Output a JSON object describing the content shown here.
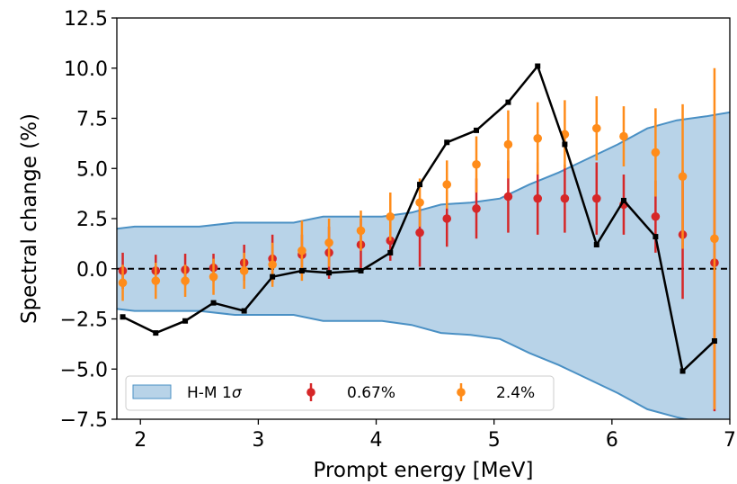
{
  "chart_data": {
    "type": "scatter",
    "title": "",
    "xlabel": "Prompt energy [MeV]",
    "ylabel": "Spectral change (%)",
    "xlim": [
      1.8,
      7.0
    ],
    "ylim": [
      -7.5,
      12.5
    ],
    "x_ticks": [
      2,
      3,
      4,
      5,
      6,
      7
    ],
    "x_tick_labels": [
      "2",
      "3",
      "4",
      "5",
      "6",
      "7"
    ],
    "y_ticks": [
      -7.5,
      -5.0,
      -2.5,
      0.0,
      2.5,
      5.0,
      7.5,
      10.0,
      12.5
    ],
    "y_tick_labels": [
      "−7.5",
      "−5.0",
      "−2.5",
      "0.0",
      "2.5",
      "5.0",
      "7.5",
      "10.0",
      "12.5"
    ],
    "grid": false,
    "legend_position": "bottom-left",
    "reference_line": {
      "y": 0,
      "style": "dashed",
      "color": "#000000"
    },
    "band": {
      "name": "H-M 1σ",
      "legend_label_prefix": "H-M 1",
      "legend_label_symbol": "σ",
      "fill_color": "#b8d3e8",
      "edge_color": "#4a90c4",
      "x": [
        1.8,
        1.95,
        2.2,
        2.5,
        2.8,
        3.05,
        3.3,
        3.55,
        3.8,
        4.05,
        4.3,
        4.55,
        4.8,
        5.05,
        5.3,
        5.55,
        5.8,
        6.05,
        6.3,
        6.55,
        6.8,
        7.0
      ],
      "upper": [
        2.0,
        2.1,
        2.1,
        2.1,
        2.3,
        2.3,
        2.3,
        2.6,
        2.6,
        2.6,
        2.8,
        3.2,
        3.3,
        3.5,
        4.2,
        4.8,
        5.5,
        6.2,
        7.0,
        7.4,
        7.6,
        7.8
      ],
      "lower": [
        -2.0,
        -2.1,
        -2.1,
        -2.1,
        -2.3,
        -2.3,
        -2.3,
        -2.6,
        -2.6,
        -2.6,
        -2.8,
        -3.2,
        -3.3,
        -3.5,
        -4.2,
        -4.8,
        -5.5,
        -6.2,
        -7.0,
        -7.4,
        -7.7,
        -7.8
      ]
    },
    "black_line": {
      "color": "#000000",
      "x": [
        1.85,
        2.13,
        2.38,
        2.62,
        2.88,
        3.12,
        3.37,
        3.6,
        3.87,
        4.12,
        4.37,
        4.6,
        4.85,
        5.12,
        5.37,
        5.6,
        5.87,
        6.1,
        6.37,
        6.6,
        6.87
      ],
      "y": [
        -2.4,
        -3.2,
        -2.6,
        -1.7,
        -2.1,
        -0.4,
        -0.1,
        -0.2,
        -0.1,
        0.8,
        4.2,
        6.3,
        6.9,
        8.3,
        10.1,
        6.2,
        1.2,
        3.4,
        1.6,
        -5.1,
        -3.6
      ]
    },
    "series": [
      {
        "name": "0.67%",
        "color": "#d62728",
        "x": [
          1.85,
          2.13,
          2.38,
          2.62,
          2.88,
          3.12,
          3.37,
          3.6,
          3.87,
          4.12,
          4.37,
          4.6,
          4.85,
          5.12,
          5.37,
          5.6,
          5.87,
          6.1,
          6.37,
          6.6,
          6.87
        ],
        "y": [
          -0.1,
          -0.1,
          -0.05,
          0.05,
          0.3,
          0.5,
          0.7,
          0.8,
          1.2,
          1.4,
          1.8,
          2.5,
          3.0,
          3.6,
          3.5,
          3.5,
          3.5,
          3.2,
          2.6,
          1.7,
          0.3
        ],
        "err": [
          0.9,
          0.8,
          0.8,
          0.7,
          0.9,
          1.2,
          1.0,
          1.3,
          1.3,
          1.0,
          1.7,
          1.4,
          1.5,
          1.8,
          1.8,
          1.7,
          1.8,
          1.5,
          1.8,
          3.2,
          7.4
        ]
      },
      {
        "name": "2.4%",
        "color": "#ff8c1a",
        "x": [
          1.85,
          2.13,
          2.38,
          2.62,
          2.88,
          3.12,
          3.37,
          3.6,
          3.87,
          4.12,
          4.37,
          4.6,
          4.85,
          5.12,
          5.37,
          5.6,
          5.87,
          6.1,
          6.37,
          6.6,
          6.87
        ],
        "y": [
          -0.7,
          -0.6,
          -0.6,
          -0.4,
          -0.1,
          0.2,
          0.9,
          1.3,
          1.9,
          2.6,
          3.3,
          4.2,
          5.2,
          6.2,
          6.5,
          6.7,
          7.0,
          6.6,
          5.8,
          4.6,
          1.5
        ],
        "err": [
          0.9,
          0.9,
          0.8,
          0.9,
          0.9,
          1.1,
          1.5,
          1.2,
          1.0,
          1.2,
          1.2,
          1.2,
          1.4,
          1.7,
          1.8,
          1.7,
          1.6,
          1.5,
          2.2,
          3.6,
          8.5
        ]
      }
    ]
  }
}
